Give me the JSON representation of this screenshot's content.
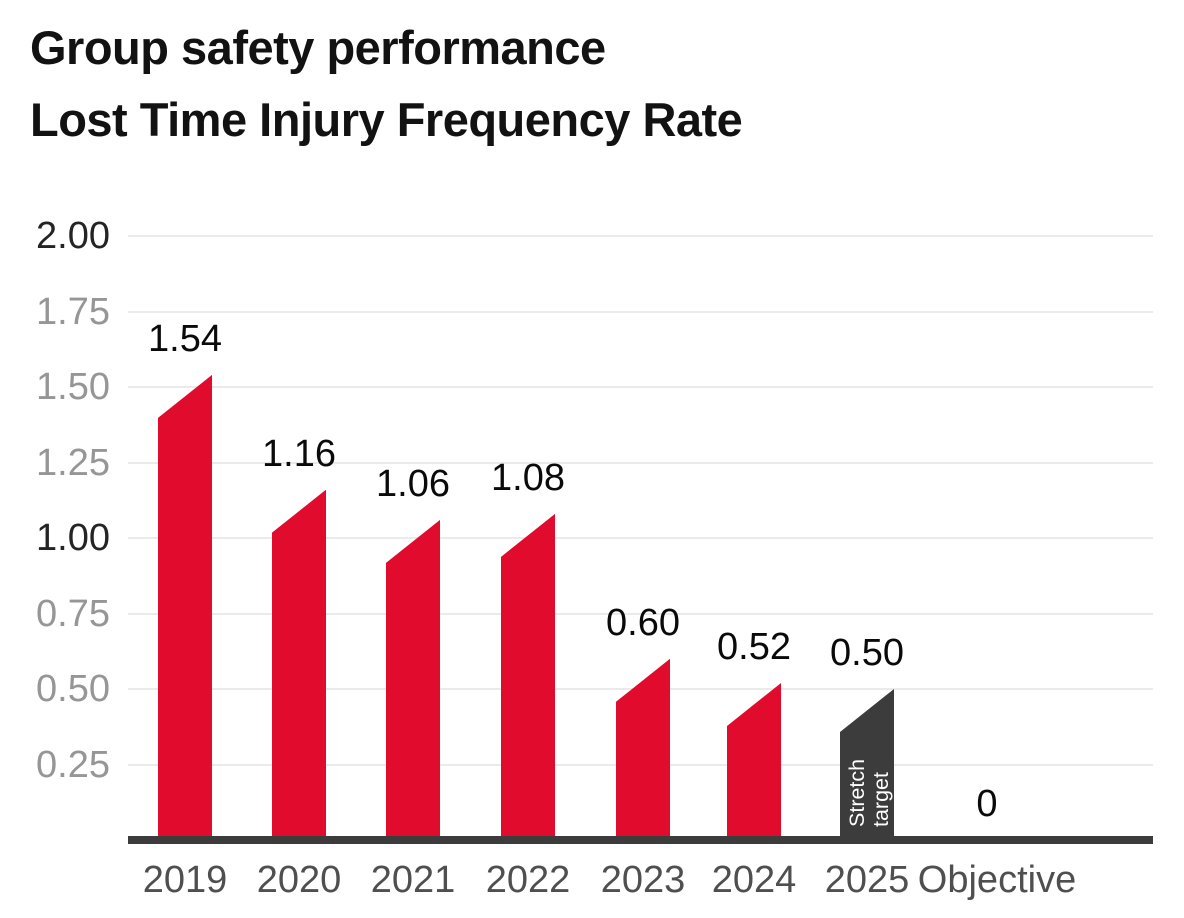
{
  "chart_data": {
    "type": "bar",
    "title": "Group safety performance",
    "subtitle": "Lost Time Injury Frequency Rate",
    "categories": [
      "2019",
      "2020",
      "2021",
      "2022",
      "2023",
      "2024",
      "2025",
      "Objective"
    ],
    "values": [
      1.54,
      1.16,
      1.06,
      1.08,
      0.6,
      0.52,
      0.5,
      0
    ],
    "value_labels": [
      "1.54",
      "1.16",
      "1.06",
      "1.08",
      "0.60",
      "0.52",
      "0.50",
      "0"
    ],
    "bar_styles": [
      "actual",
      "actual",
      "actual",
      "actual",
      "actual",
      "actual",
      "stretch",
      "none"
    ],
    "annotation": {
      "category": "2025",
      "text": "Stretch target",
      "lines": [
        "Stretch",
        "target"
      ]
    },
    "y_axis": {
      "ticks": [
        {
          "label": "2.00",
          "value": 2.0,
          "emphasis": true
        },
        {
          "label": "1.75",
          "value": 1.75,
          "emphasis": false
        },
        {
          "label": "1.50",
          "value": 1.5,
          "emphasis": false
        },
        {
          "label": "1.25",
          "value": 1.25,
          "emphasis": false
        },
        {
          "label": "1.00",
          "value": 1.0,
          "emphasis": true
        },
        {
          "label": "0.75",
          "value": 0.75,
          "emphasis": false
        },
        {
          "label": "0.50",
          "value": 0.5,
          "emphasis": false
        },
        {
          "label": "0.25",
          "value": 0.25,
          "emphasis": false
        }
      ]
    },
    "ylim": [
      0,
      2.0
    ],
    "grid": true,
    "legend": "none",
    "colors": {
      "actual_bar": "#e10c2d",
      "stretch_bar": "#3c3c3c",
      "axis_line": "#3c3c3c",
      "gridline": "#eaeaea",
      "y_tick_gray": "#969696",
      "y_tick_dark": "#242424",
      "category_label": "#4f4f4f",
      "value_label": "#0a0a0a",
      "annotation_text": "#ffffff",
      "title_text": "#121212"
    }
  }
}
